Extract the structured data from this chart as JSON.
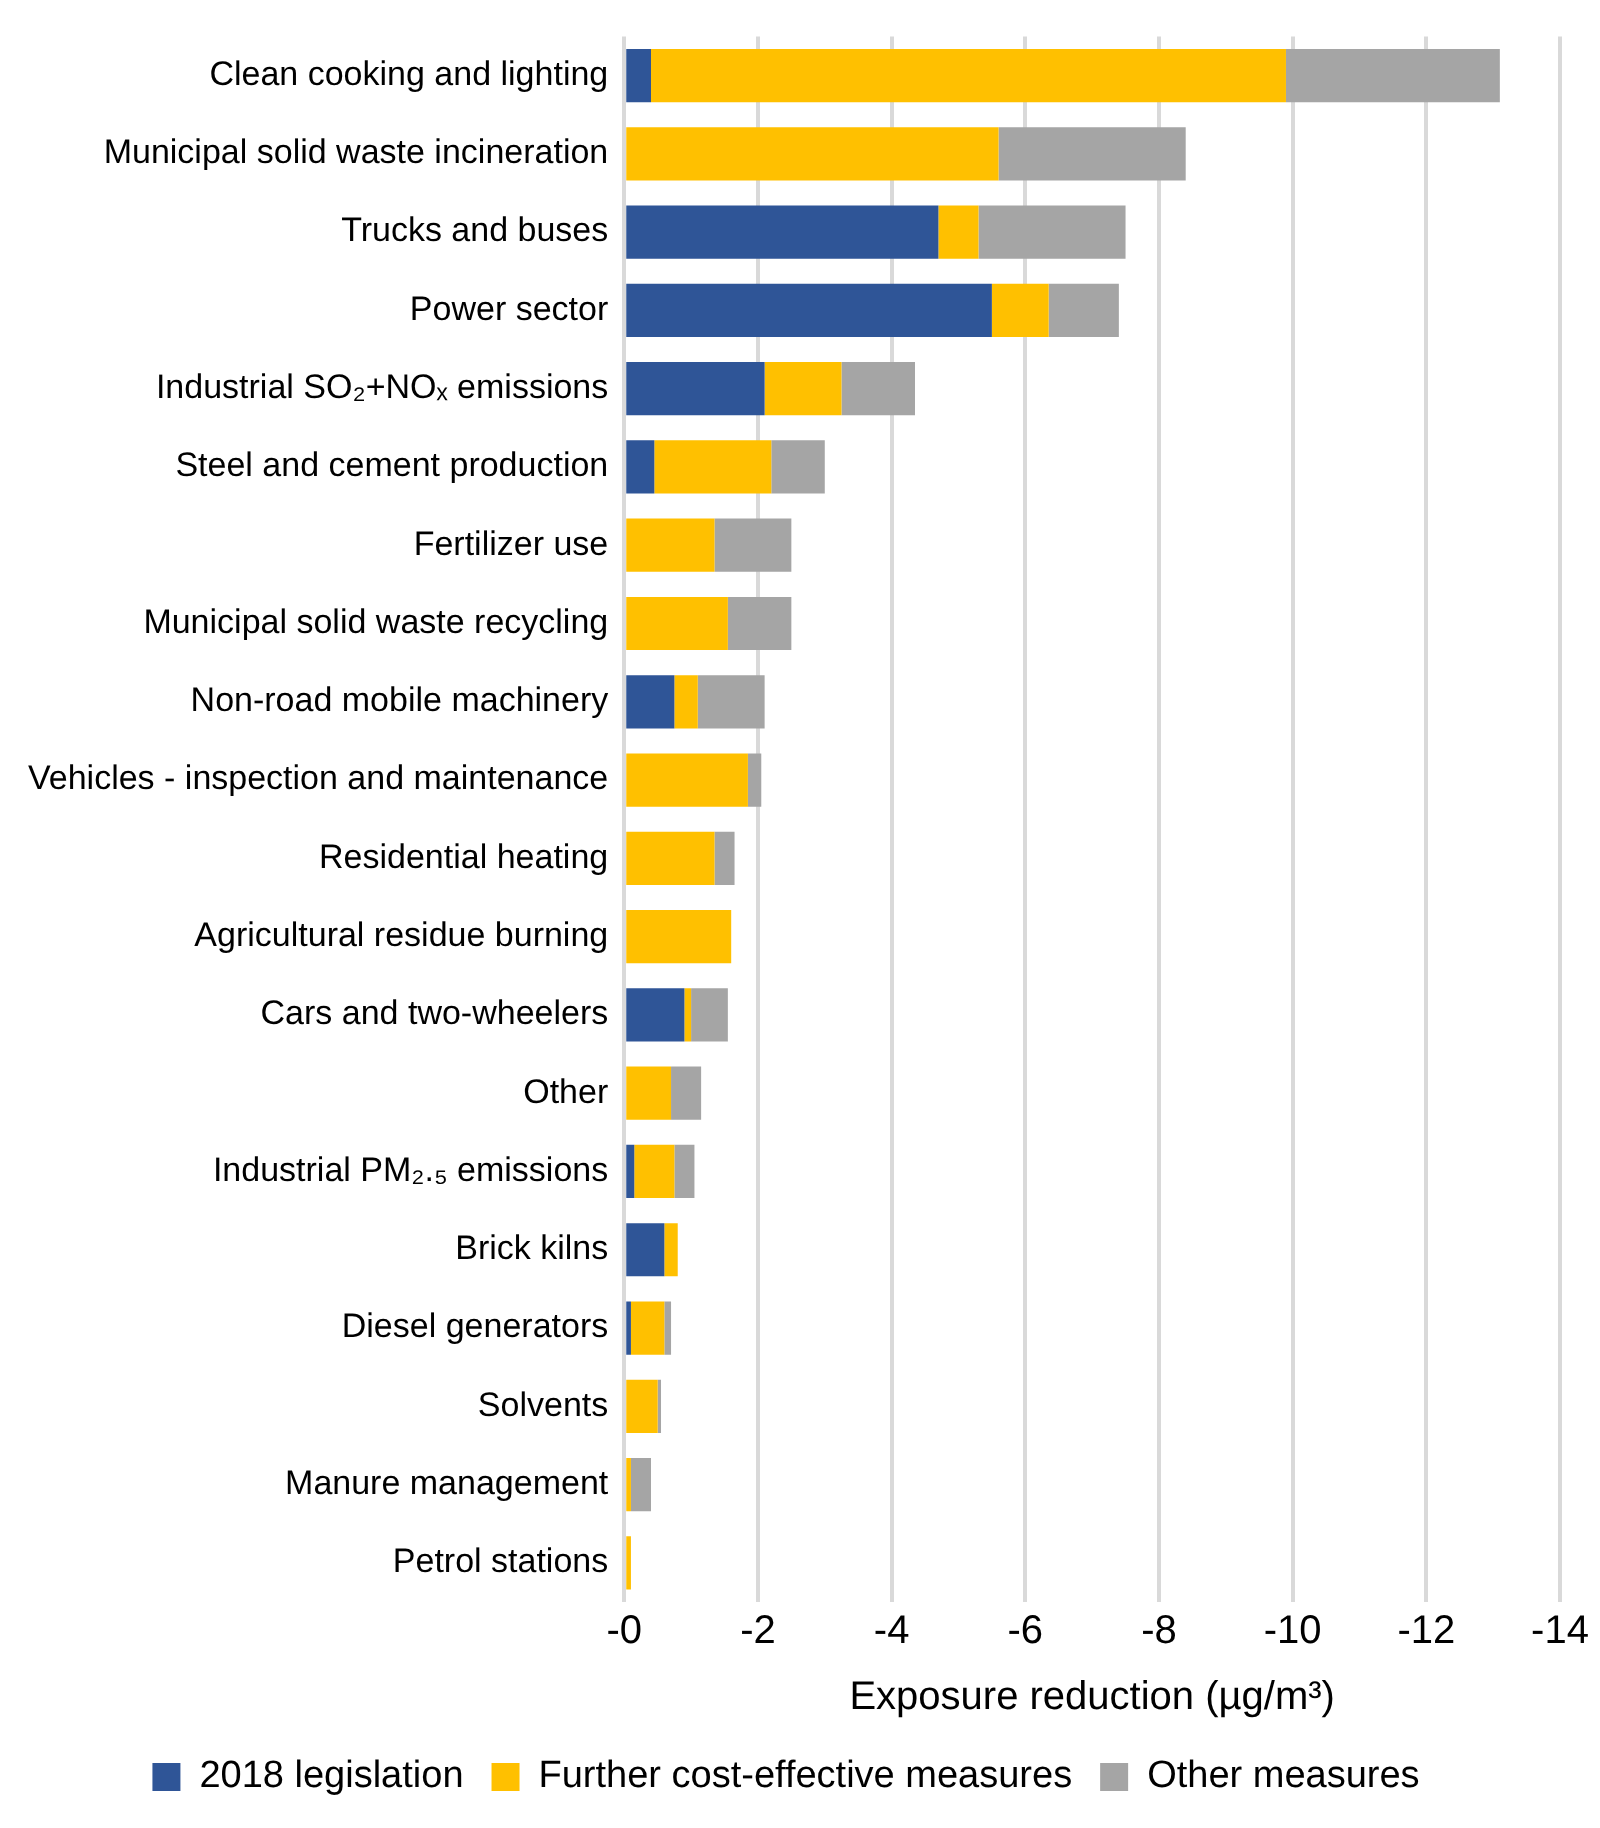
{
  "chart_data": {
    "type": "bar",
    "orientation": "horizontal",
    "stacked": true,
    "categories": [
      "Clean cooking and lighting",
      "Municipal solid waste incineration",
      "Trucks and buses",
      "Power sector",
      "Industrial SO₂+NOₓ emissions",
      "Steel and cement production",
      "Fertilizer use",
      "Municipal solid waste recycling",
      "Non-road mobile machinery",
      "Vehicles - inspection and maintenance",
      "Residential heating",
      "Agricultural residue burning",
      "Cars and two-wheelers",
      "Other",
      "Industrial PM₂.₅ emissions",
      "Brick kilns",
      "Diesel generators",
      "Solvents",
      "Manure management",
      "Petrol stations"
    ],
    "series": [
      {
        "name": "2018 legislation",
        "color": "#2f5597",
        "values": [
          -0.4,
          null,
          -4.7,
          -5.5,
          -2.1,
          -0.45,
          null,
          null,
          -0.75,
          null,
          null,
          null,
          -0.9,
          null,
          -0.15,
          -0.6,
          -0.1,
          null,
          null,
          null
        ]
      },
      {
        "name": "Further cost-effective measures",
        "color": "#ffc000",
        "values": [
          -9.5,
          -5.6,
          -0.6,
          -0.85,
          -1.15,
          -1.75,
          -1.35,
          -1.55,
          -0.35,
          -1.85,
          -1.35,
          -1.6,
          -0.1,
          -0.7,
          -0.6,
          -0.2,
          -0.5,
          -0.5,
          -0.1,
          -0.1
        ]
      },
      {
        "name": "Other measures",
        "color": "#a5a5a5",
        "values": [
          -3.2,
          -2.8,
          -2.2,
          -1.05,
          -1.1,
          -0.8,
          -1.15,
          -0.95,
          -1.0,
          -0.2,
          -0.3,
          null,
          -0.55,
          -0.45,
          -0.3,
          null,
          -0.1,
          -0.05,
          -0.3,
          null
        ]
      }
    ],
    "xlabel": "Exposure reduction (µg/m³)",
    "xlim": [
      0,
      -14
    ],
    "xticks": [
      {
        "value": 0,
        "label": "-0"
      },
      -2,
      -4,
      -6,
      -8,
      -10,
      -12,
      -14
    ],
    "grid": "x",
    "legend": "bottom"
  }
}
